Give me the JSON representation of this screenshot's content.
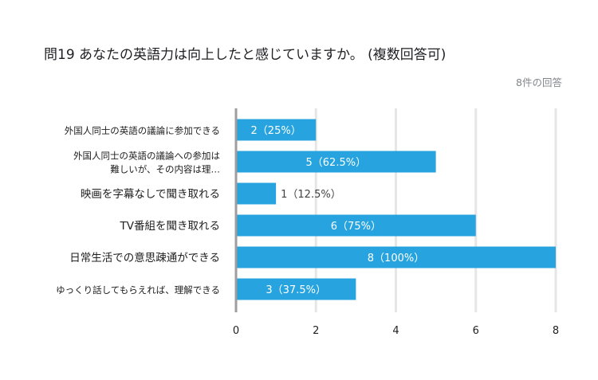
{
  "title": "問19  あなたの英語力は向上したと感じていますか。 (複数回答可)",
  "response_count": "8件の回答",
  "colors": {
    "bar": "#27a4df",
    "grid": "#e6e6e6",
    "axis": "#9e9e9e",
    "label_inside": "#ffffff",
    "label_outside": "#424242"
  },
  "chart_data": {
    "type": "bar",
    "orientation": "horizontal",
    "categories": [
      [
        "外国人同士の英語の議論に参加できる"
      ],
      [
        "外国人同士の英語の議論への参加は",
        "難しいが、その内容は理…"
      ],
      [
        "映画を字幕なしで聞き取れる"
      ],
      [
        "TV番組を聞き取れる"
      ],
      [
        "日常生活での意思疎通ができる"
      ],
      [
        "ゆっくり話してもらえれば、理解できる"
      ]
    ],
    "values": [
      2,
      5,
      1,
      6,
      8,
      3
    ],
    "value_labels": [
      "2（25%）",
      "5（62.5%）",
      "1（12.5%）",
      "6（75%）",
      "8（100%）",
      "3（37.5%）"
    ],
    "xlim": [
      0,
      8
    ],
    "xticks": [
      0,
      2,
      4,
      6,
      8
    ],
    "grid": true
  }
}
